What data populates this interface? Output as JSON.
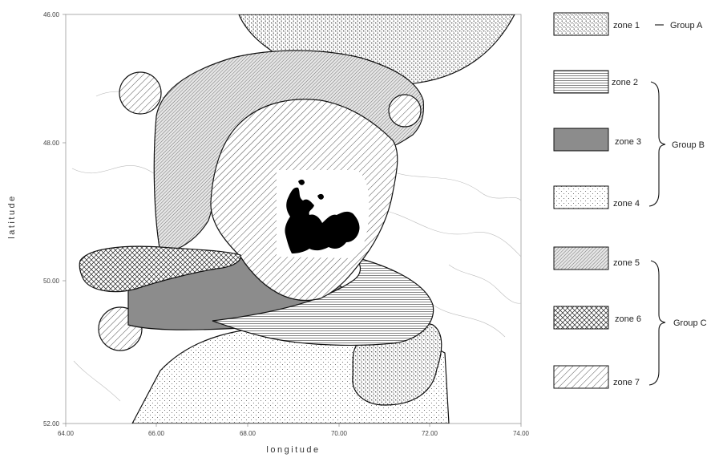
{
  "axes": {
    "xlabel": "longitude",
    "ylabel": "latitude",
    "x_ticks": [
      "64.00",
      "66.00",
      "68.00",
      "70.00",
      "72.00",
      "74.00"
    ],
    "y_ticks": [
      "46.00",
      "48.00",
      "50.00",
      "52.00"
    ]
  },
  "legend": {
    "zones": [
      {
        "label": "zone 1",
        "pattern": "dots-dense"
      },
      {
        "label": "zone 2",
        "pattern": "horizontal-lines"
      },
      {
        "label": "zone 3",
        "pattern": "dark-horizontal-lines"
      },
      {
        "label": "zone 4",
        "pattern": "dots-sparse"
      },
      {
        "label": "zone 5",
        "pattern": "diagonal-dense"
      },
      {
        "label": "zone 6",
        "pattern": "crosshatch"
      },
      {
        "label": "zone 7",
        "pattern": "diagonal-wide"
      }
    ],
    "groups": [
      {
        "label": "Group A"
      },
      {
        "label": "Group B"
      },
      {
        "label": "Group C"
      }
    ]
  },
  "colors": {
    "ink": "#111111",
    "zone3_fill": "#9a9a9a",
    "island": "#000000",
    "contours": "#bbbbbb"
  }
}
